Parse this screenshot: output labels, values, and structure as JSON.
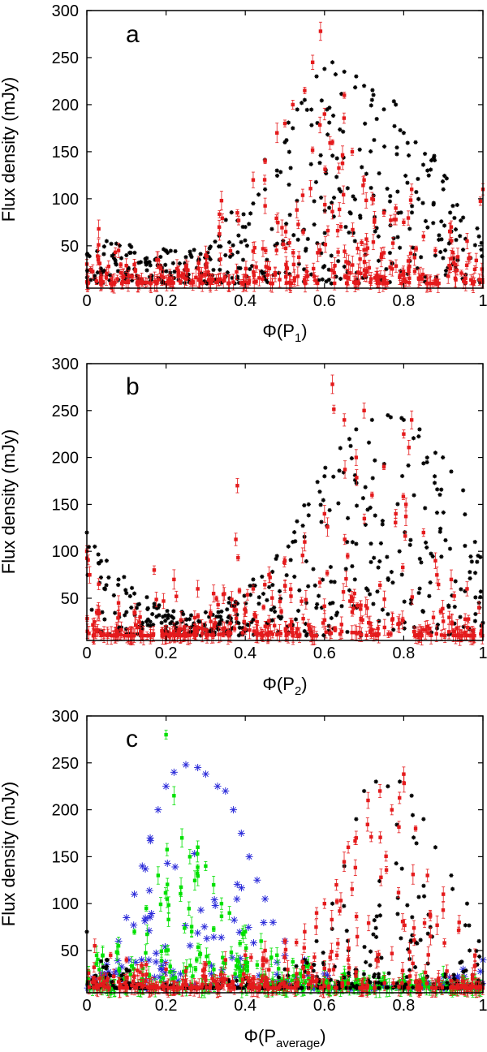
{
  "chart_data": [
    {
      "type": "scatter",
      "panel_label": "a",
      "ylabel": "Flux density (mJy)",
      "xlabel_main": "Φ(P",
      "xlabel_sub": "1",
      "xlabel_end": ")",
      "xlim": [
        0,
        1
      ],
      "ylim": [
        5,
        300
      ],
      "xticks": [
        "0",
        "0.2",
        "0.4",
        "0.6",
        "0.8",
        "1"
      ],
      "yticks": [
        "50",
        "100",
        "150",
        "200",
        "250",
        "300"
      ],
      "series": [
        {
          "name": "black stars",
          "marker": "star",
          "color": "#000000",
          "envelope": [
            [
              0.0,
              55
            ],
            [
              0.3,
              45
            ],
            [
              0.4,
              110
            ],
            [
              0.5,
              180
            ],
            [
              0.6,
              240
            ],
            [
              0.68,
              235
            ],
            [
              0.8,
              200
            ],
            [
              0.9,
              140
            ],
            [
              1.0,
              60
            ]
          ],
          "points": [
            [
              0.02,
              18
            ],
            [
              0.05,
              55
            ],
            [
              0.1,
              40
            ],
            [
              0.15,
              30
            ],
            [
              0.2,
              45
            ],
            [
              0.25,
              38
            ],
            [
              0.3,
              30
            ],
            [
              0.35,
              40
            ],
            [
              0.4,
              70
            ],
            [
              0.42,
              95
            ],
            [
              0.45,
              110
            ],
            [
              0.48,
              130
            ],
            [
              0.5,
              160
            ],
            [
              0.52,
              175
            ],
            [
              0.55,
              205
            ],
            [
              0.58,
              230
            ],
            [
              0.6,
              238
            ],
            [
              0.62,
              245
            ],
            [
              0.65,
              235
            ],
            [
              0.68,
              230
            ],
            [
              0.7,
              220
            ],
            [
              0.72,
              205
            ],
            [
              0.75,
              195
            ],
            [
              0.78,
              200
            ],
            [
              0.8,
              170
            ],
            [
              0.83,
              160
            ],
            [
              0.86,
              130
            ],
            [
              0.9,
              110
            ],
            [
              0.95,
              80
            ],
            [
              0.99,
              60
            ]
          ]
        },
        {
          "name": "red points with error bars",
          "marker": "square-errorbar",
          "color": "#e41a1c",
          "points": [
            [
              0.03,
              68
            ],
            [
              0.08,
              45
            ],
            [
              0.12,
              30
            ],
            [
              0.18,
              35
            ],
            [
              0.25,
              28
            ],
            [
              0.3,
              40
            ],
            [
              0.34,
              98
            ],
            [
              0.38,
              85
            ],
            [
              0.42,
              120
            ],
            [
              0.45,
              140
            ],
            [
              0.48,
              170
            ],
            [
              0.5,
              180
            ],
            [
              0.52,
              200
            ],
            [
              0.55,
              215
            ],
            [
              0.57,
              245
            ],
            [
              0.59,
              278
            ],
            [
              0.6,
              190
            ],
            [
              0.62,
              160
            ],
            [
              0.65,
              210
            ],
            [
              0.67,
              150
            ],
            [
              0.7,
              120
            ],
            [
              0.72,
              100
            ],
            [
              0.75,
              85
            ],
            [
              0.78,
              90
            ],
            [
              0.8,
              75
            ],
            [
              0.82,
              110
            ],
            [
              0.85,
              60
            ],
            [
              0.88,
              45
            ],
            [
              0.92,
              70
            ],
            [
              0.96,
              55
            ],
            [
              1.0,
              110
            ]
          ]
        }
      ]
    },
    {
      "type": "scatter",
      "panel_label": "b",
      "ylabel": "Flux density (mJy)",
      "xlabel_main": "Φ(P",
      "xlabel_sub": "2",
      "xlabel_end": ")",
      "xlim": [
        0,
        1
      ],
      "ylim": [
        5,
        300
      ],
      "xticks": [
        "0",
        "0.2",
        "0.4",
        "0.6",
        "0.8",
        "1"
      ],
      "yticks": [
        "50",
        "100",
        "150",
        "200",
        "250",
        "300"
      ],
      "series": [
        {
          "name": "black stars",
          "marker": "star",
          "color": "#000000",
          "envelope": [
            [
              0.0,
              120
            ],
            [
              0.1,
              70
            ],
            [
              0.2,
              40
            ],
            [
              0.3,
              30
            ],
            [
              0.4,
              60
            ],
            [
              0.5,
              110
            ],
            [
              0.6,
              190
            ],
            [
              0.7,
              240
            ],
            [
              0.8,
              245
            ],
            [
              0.9,
              200
            ],
            [
              0.97,
              150
            ],
            [
              1.0,
              80
            ]
          ],
          "points": [
            [
              0.0,
              120
            ],
            [
              0.02,
              105
            ],
            [
              0.05,
              90
            ],
            [
              0.08,
              70
            ],
            [
              0.12,
              55
            ],
            [
              0.18,
              40
            ],
            [
              0.24,
              25
            ],
            [
              0.3,
              35
            ],
            [
              0.36,
              50
            ],
            [
              0.42,
              70
            ],
            [
              0.48,
              95
            ],
            [
              0.52,
              110
            ],
            [
              0.56,
              150
            ],
            [
              0.6,
              180
            ],
            [
              0.64,
              210
            ],
            [
              0.68,
              230
            ],
            [
              0.72,
              240
            ],
            [
              0.76,
              245
            ],
            [
              0.8,
              240
            ],
            [
              0.84,
              230
            ],
            [
              0.88,
              205
            ],
            [
              0.92,
              185
            ],
            [
              0.95,
              165
            ],
            [
              0.98,
              110
            ]
          ]
        },
        {
          "name": "red points with error bars",
          "marker": "square-errorbar",
          "color": "#e41a1c",
          "points": [
            [
              0.0,
              100
            ],
            [
              0.03,
              65
            ],
            [
              0.08,
              45
            ],
            [
              0.12,
              35
            ],
            [
              0.17,
              80
            ],
            [
              0.22,
              70
            ],
            [
              0.28,
              60
            ],
            [
              0.32,
              55
            ],
            [
              0.38,
              170
            ],
            [
              0.42,
              60
            ],
            [
              0.46,
              75
            ],
            [
              0.5,
              90
            ],
            [
              0.55,
              110
            ],
            [
              0.6,
              140
            ],
            [
              0.62,
              278
            ],
            [
              0.65,
              240
            ],
            [
              0.68,
              200
            ],
            [
              0.7,
              250
            ],
            [
              0.72,
              160
            ],
            [
              0.75,
              190
            ],
            [
              0.78,
              140
            ],
            [
              0.8,
              225
            ],
            [
              0.82,
              240
            ],
            [
              0.85,
              120
            ],
            [
              0.88,
              90
            ],
            [
              0.92,
              70
            ],
            [
              0.96,
              60
            ],
            [
              0.99,
              40
            ]
          ]
        }
      ]
    },
    {
      "type": "scatter",
      "panel_label": "c",
      "ylabel": "Flux density (mJy)",
      "xlabel_main": "Φ(P",
      "xlabel_sub": "average",
      "xlabel_end": ")",
      "xlim": [
        0,
        1
      ],
      "ylim": [
        5,
        300
      ],
      "xticks": [
        "0",
        "0.2",
        "0.4",
        "0.6",
        "0.8",
        "1"
      ],
      "yticks": [
        "50",
        "100",
        "150",
        "200",
        "250",
        "300"
      ],
      "series": [
        {
          "name": "blue crosses",
          "marker": "asterisk",
          "color": "#2b2bd9",
          "points": [
            [
              0.05,
              35
            ],
            [
              0.08,
              60
            ],
            [
              0.1,
              85
            ],
            [
              0.12,
              110
            ],
            [
              0.14,
              140
            ],
            [
              0.16,
              170
            ],
            [
              0.18,
              200
            ],
            [
              0.2,
              225
            ],
            [
              0.22,
              240
            ],
            [
              0.25,
              248
            ],
            [
              0.28,
              245
            ],
            [
              0.3,
              238
            ],
            [
              0.33,
              225
            ],
            [
              0.35,
              220
            ],
            [
              0.37,
              200
            ],
            [
              0.39,
              175
            ],
            [
              0.41,
              150
            ],
            [
              0.43,
              125
            ],
            [
              0.45,
              105
            ],
            [
              0.47,
              80
            ],
            [
              0.5,
              60
            ],
            [
              0.55,
              40
            ],
            [
              0.6,
              25
            ],
            [
              0.65,
              18
            ],
            [
              0.7,
              14
            ],
            [
              0.75,
              15
            ],
            [
              0.8,
              18
            ],
            [
              0.85,
              20
            ],
            [
              0.9,
              22
            ],
            [
              0.95,
              30
            ],
            [
              1.0,
              40
            ]
          ]
        },
        {
          "name": "green points with error bars",
          "marker": "square-errorbar",
          "color": "#00e000",
          "points": [
            [
              0.04,
              45
            ],
            [
              0.08,
              55
            ],
            [
              0.12,
              70
            ],
            [
              0.15,
              95
            ],
            [
              0.18,
              130
            ],
            [
              0.2,
              280
            ],
            [
              0.22,
              215
            ],
            [
              0.24,
              170
            ],
            [
              0.26,
              150
            ],
            [
              0.28,
              160
            ],
            [
              0.3,
              140
            ],
            [
              0.32,
              120
            ],
            [
              0.34,
              100
            ],
            [
              0.36,
              90
            ],
            [
              0.4,
              70
            ],
            [
              0.44,
              60
            ],
            [
              0.48,
              45
            ],
            [
              0.52,
              38
            ],
            [
              0.56,
              35
            ],
            [
              0.6,
              30
            ],
            [
              0.65,
              25
            ],
            [
              0.7,
              20
            ],
            [
              0.75,
              22
            ],
            [
              0.8,
              18
            ],
            [
              0.85,
              20
            ],
            [
              0.9,
              24
            ],
            [
              0.95,
              22
            ],
            [
              0.98,
              20
            ]
          ]
        },
        {
          "name": "black stars",
          "marker": "star",
          "color": "#000000",
          "points": [
            [
              0.0,
              70
            ],
            [
              0.05,
              40
            ],
            [
              0.1,
              30
            ],
            [
              0.2,
              15
            ],
            [
              0.3,
              12
            ],
            [
              0.4,
              20
            ],
            [
              0.5,
              30
            ],
            [
              0.55,
              40
            ],
            [
              0.58,
              60
            ],
            [
              0.62,
              100
            ],
            [
              0.65,
              140
            ],
            [
              0.68,
              190
            ],
            [
              0.7,
              220
            ],
            [
              0.73,
              230
            ],
            [
              0.76,
              225
            ],
            [
              0.79,
              230
            ],
            [
              0.82,
              215
            ],
            [
              0.85,
              190
            ],
            [
              0.88,
              160
            ],
            [
              0.92,
              130
            ],
            [
              0.96,
              100
            ],
            [
              0.99,
              60
            ]
          ]
        },
        {
          "name": "red points with error bars",
          "marker": "square-errorbar",
          "color": "#e41a1c",
          "points": [
            [
              0.02,
              55
            ],
            [
              0.06,
              45
            ],
            [
              0.1,
              40
            ],
            [
              0.15,
              35
            ],
            [
              0.2,
              30
            ],
            [
              0.25,
              28
            ],
            [
              0.3,
              35
            ],
            [
              0.35,
              40
            ],
            [
              0.4,
              45
            ],
            [
              0.45,
              50
            ],
            [
              0.5,
              60
            ],
            [
              0.55,
              70
            ],
            [
              0.58,
              90
            ],
            [
              0.6,
              100
            ],
            [
              0.63,
              120
            ],
            [
              0.66,
              160
            ],
            [
              0.68,
              170
            ],
            [
              0.71,
              210
            ],
            [
              0.74,
              220
            ],
            [
              0.77,
              200
            ],
            [
              0.8,
              238
            ],
            [
              0.83,
              180
            ],
            [
              0.86,
              130
            ],
            [
              0.9,
              110
            ],
            [
              0.94,
              80
            ],
            [
              0.98,
              45
            ]
          ]
        }
      ]
    }
  ]
}
